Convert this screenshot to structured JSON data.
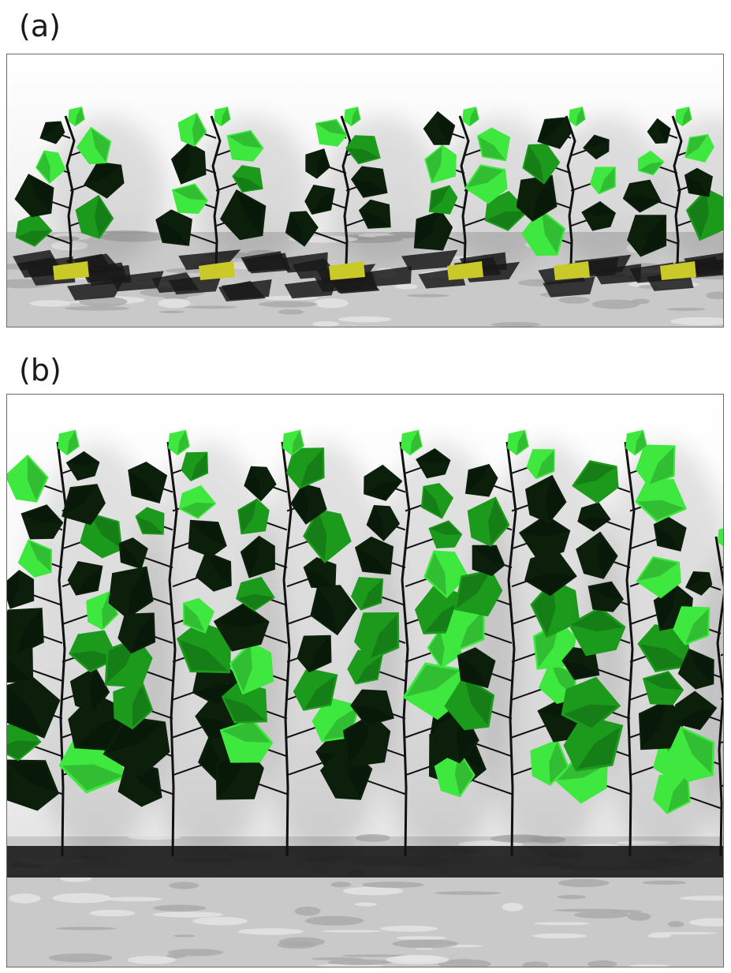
{
  "panels": [
    {
      "label": "(a)",
      "description_name": "young-cotton-canopy-render",
      "plant_count": 6
    },
    {
      "label": "(b)",
      "description_name": "mature-cotton-canopy-render",
      "plant_count": 6
    }
  ],
  "colors": {
    "leaf_light": "#3ee83e",
    "leaf_mid": "#1c9a1c",
    "leaf_dark": "#0b1f0b",
    "stem": "#111111",
    "soil": "#c9c9c9",
    "shadow": "#1a1a1a",
    "pot": "#c9c92a",
    "border": "#6b6b6b"
  }
}
